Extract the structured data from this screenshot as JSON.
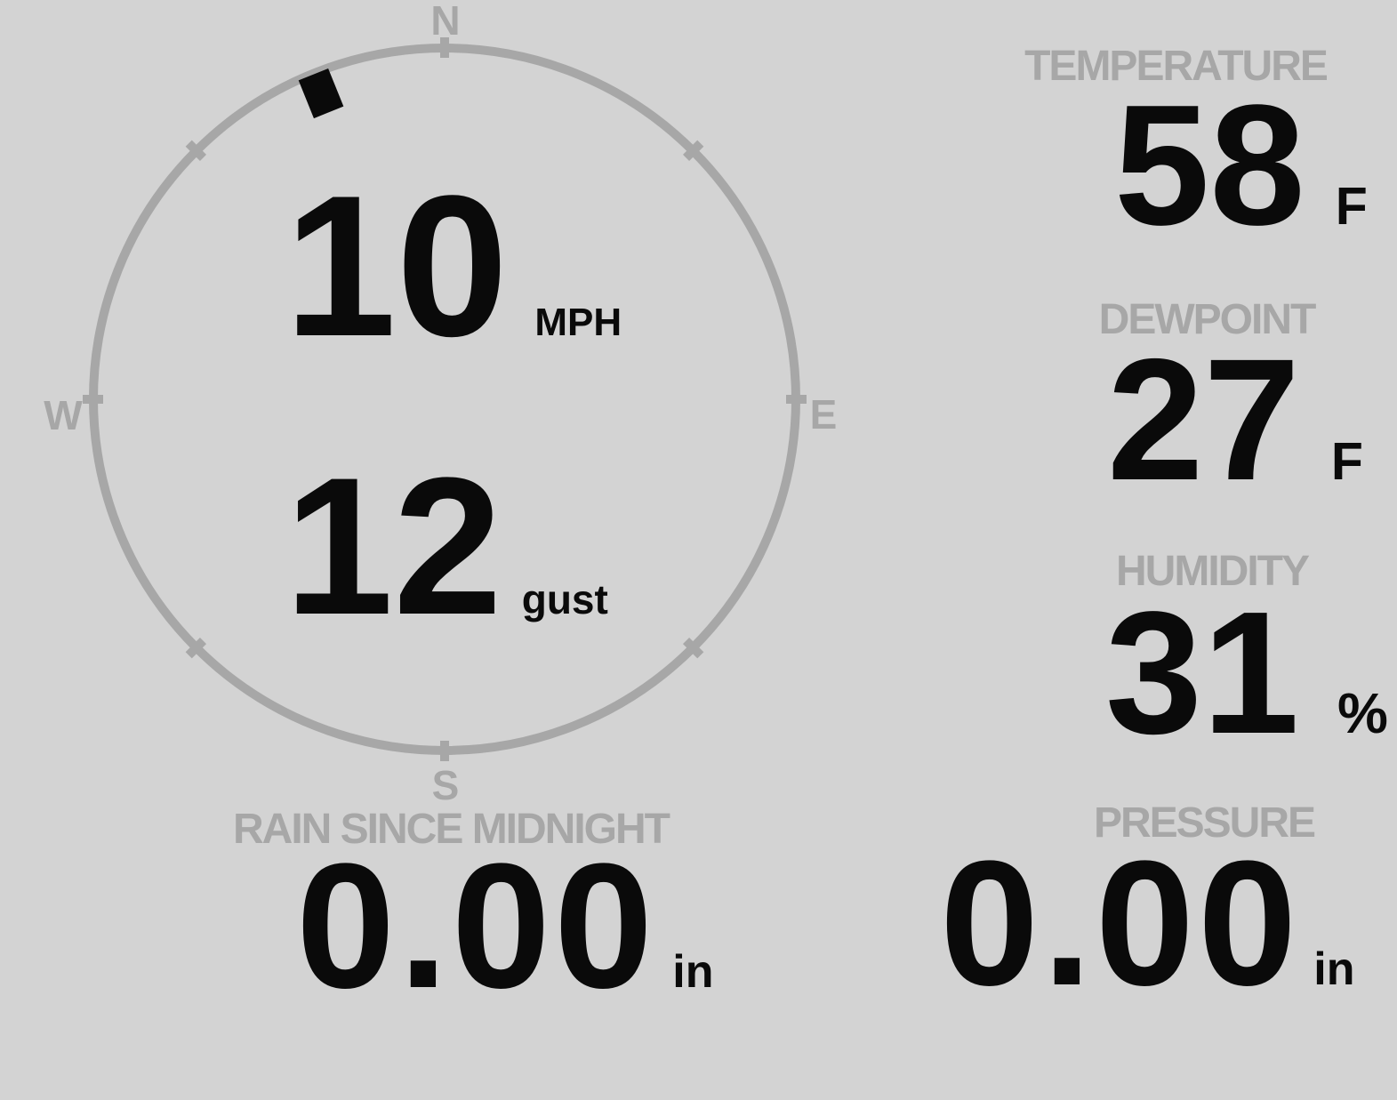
{
  "colors": {
    "background": "#d3d3d3",
    "muted": "#a7a7a7",
    "ink": "#0a0a0a"
  },
  "compass": {
    "cardinals": {
      "north": "N",
      "east": "E",
      "south": "S",
      "west": "W"
    },
    "wind_direction_deg": 338
  },
  "wind": {
    "speed": "10",
    "speed_unit": "MPH",
    "gust": "12",
    "gust_label": "gust"
  },
  "metrics": {
    "temperature": {
      "label": "TEMPERATURE",
      "value": "58",
      "unit": "F"
    },
    "dewpoint": {
      "label": "DEWPOINT",
      "value": "27",
      "unit": "F"
    },
    "humidity": {
      "label": "HUMIDITY",
      "value": "31",
      "unit": "%"
    },
    "rain_since_midnight": {
      "label": "RAIN SINCE MIDNIGHT",
      "value": "0.00",
      "unit": "in"
    },
    "pressure": {
      "label": "PRESSURE",
      "value": "0.00",
      "unit": "in"
    }
  }
}
